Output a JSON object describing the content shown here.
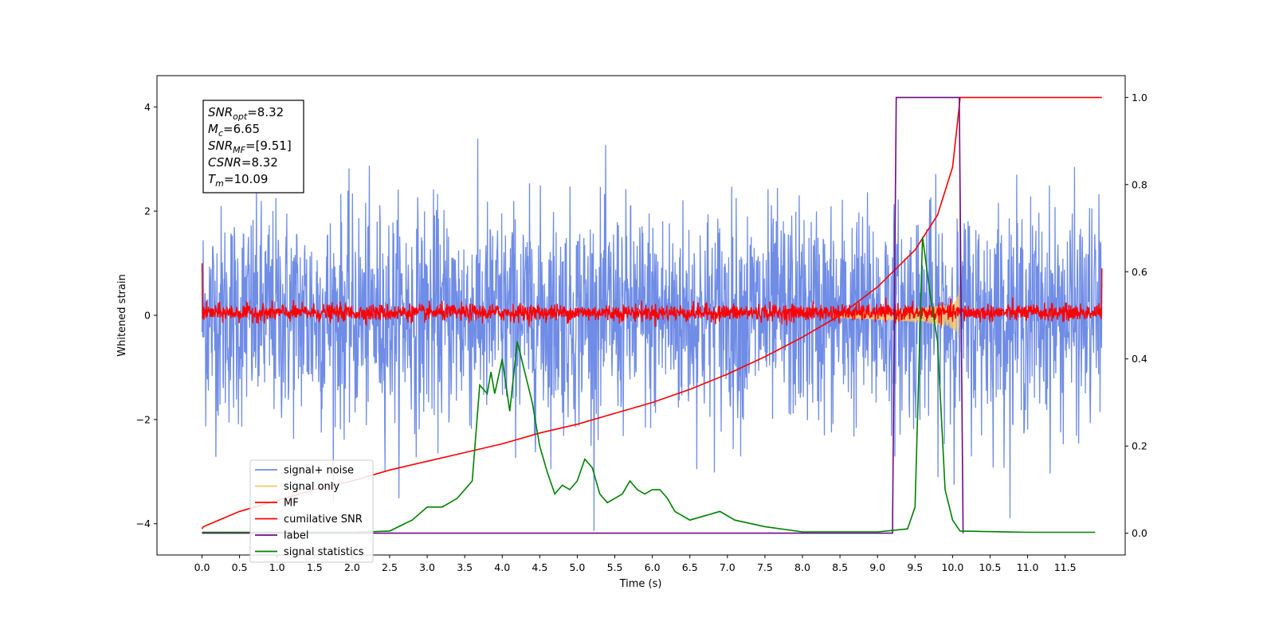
{
  "chart_data": {
    "type": "line",
    "title": "",
    "xlabel": "Time (s)",
    "ylabel": "Whitened strain",
    "y2label": "",
    "xlim": [
      -0.6,
      12.3
    ],
    "ylim": [
      -4.6,
      4.6
    ],
    "y2lim": [
      -0.05,
      1.05
    ],
    "x_ticks": [
      0.0,
      0.5,
      1.0,
      1.5,
      2.0,
      2.5,
      3.0,
      3.5,
      4.0,
      4.5,
      5.0,
      5.5,
      6.0,
      6.5,
      7.0,
      7.5,
      8.0,
      8.5,
      9.0,
      9.5,
      10.0,
      10.5,
      11.0,
      11.5
    ],
    "x_tick_labels": [
      "0.0",
      "0.5",
      "1.0",
      "1.5",
      "2.0",
      "2.5",
      "3.0",
      "3.5",
      "4.0",
      "4.5",
      "5.0",
      "5.5",
      "6.0",
      "6.5",
      "7.0",
      "7.5",
      "8.0",
      "8.5",
      "9.0",
      "9.5",
      "10.0",
      "10.5",
      "11.0",
      "11.5"
    ],
    "y_ticks": [
      -4,
      -2,
      0,
      2,
      4
    ],
    "y_tick_labels": [
      "−4",
      "−2",
      "0",
      "2",
      "4"
    ],
    "y2_ticks": [
      0.0,
      0.2,
      0.4,
      0.6,
      0.8,
      1.0
    ],
    "y2_tick_labels": [
      "0.0",
      "0.2",
      "0.4",
      "0.6",
      "0.8",
      "1.0"
    ],
    "grid": false,
    "legend_position": "lower-left",
    "annotation": {
      "position": "top-left",
      "lines": [
        {
          "base": "SNR",
          "sub": "opt",
          "text": "=8.32"
        },
        {
          "base": "M",
          "sub": "c",
          "text": "=6.65"
        },
        {
          "base": "SNR",
          "sub": "MF",
          "text": "=[9.51]"
        },
        {
          "base": "CSNR",
          "sub": "",
          "text": "=8.32"
        },
        {
          "base": "T",
          "sub": "m",
          "text": "=10.09"
        }
      ]
    },
    "series": [
      {
        "name": "signal+ noise",
        "axis": "left",
        "color": "#6f8ce6",
        "kind": "noise",
        "x_range": [
          0.0,
          11.99
        ],
        "center": 0.0,
        "amplitude": 2.3,
        "points": 2400
      },
      {
        "name": "signal only",
        "axis": "left",
        "color": "#f5c76b",
        "kind": "chirp",
        "x_range": [
          8.4,
          10.09
        ],
        "max_amplitude": 0.6,
        "merger_time": 10.09
      },
      {
        "name": "MF",
        "axis": "left",
        "color": "#ff0000",
        "kind": "noise",
        "x_range": [
          0.0,
          11.99
        ],
        "center": 0.05,
        "amplitude": 0.18,
        "points": 2400,
        "edge_values": [
          1.0,
          0.9
        ]
      },
      {
        "name": "cumilative SNR",
        "axis": "right",
        "color": "#ff0000",
        "kind": "line",
        "x": [
          0.0,
          0.02,
          0.5,
          1.0,
          1.5,
          2.0,
          2.5,
          3.0,
          3.5,
          4.0,
          4.5,
          5.0,
          5.5,
          6.0,
          6.5,
          7.0,
          7.5,
          8.0,
          8.5,
          9.0,
          9.5,
          9.8,
          10.0,
          10.09,
          10.1,
          11.99
        ],
        "y": [
          0.01,
          0.015,
          0.05,
          0.075,
          0.1,
          0.12,
          0.145,
          0.165,
          0.185,
          0.205,
          0.23,
          0.25,
          0.275,
          0.3,
          0.33,
          0.365,
          0.405,
          0.45,
          0.5,
          0.565,
          0.65,
          0.73,
          0.84,
          0.98,
          1.0,
          1.0
        ]
      },
      {
        "name": "label",
        "axis": "right",
        "color": "#6a0d83",
        "kind": "line",
        "x": [
          0.0,
          9.2,
          9.25,
          10.09,
          10.14
        ],
        "y": [
          0.0,
          0.0,
          1.0,
          1.0,
          0.0
        ]
      },
      {
        "name": "signal statistics",
        "axis": "right",
        "color": "#008000",
        "kind": "line",
        "x": [
          0.0,
          0.5,
          1.0,
          1.5,
          2.0,
          2.5,
          2.8,
          3.0,
          3.2,
          3.4,
          3.6,
          3.7,
          3.8,
          3.85,
          3.9,
          4.0,
          4.1,
          4.2,
          4.3,
          4.4,
          4.5,
          4.6,
          4.7,
          4.8,
          4.9,
          5.0,
          5.1,
          5.2,
          5.3,
          5.4,
          5.5,
          5.6,
          5.7,
          5.8,
          5.9,
          6.0,
          6.1,
          6.2,
          6.3,
          6.5,
          6.7,
          6.9,
          7.1,
          7.5,
          8.0,
          8.5,
          9.0,
          9.4,
          9.5,
          9.6,
          9.7,
          9.8,
          9.9,
          10.0,
          10.1,
          11.0,
          11.9
        ],
        "y": [
          0.002,
          0.002,
          0.002,
          0.002,
          0.002,
          0.005,
          0.03,
          0.06,
          0.06,
          0.08,
          0.12,
          0.34,
          0.32,
          0.37,
          0.32,
          0.4,
          0.28,
          0.44,
          0.37,
          0.3,
          0.2,
          0.14,
          0.09,
          0.11,
          0.1,
          0.12,
          0.17,
          0.15,
          0.09,
          0.07,
          0.08,
          0.09,
          0.12,
          0.1,
          0.09,
          0.1,
          0.1,
          0.08,
          0.05,
          0.03,
          0.04,
          0.05,
          0.03,
          0.015,
          0.003,
          0.003,
          0.003,
          0.01,
          0.06,
          0.68,
          0.55,
          0.44,
          0.1,
          0.03,
          0.005,
          0.002,
          0.002
        ]
      }
    ]
  }
}
